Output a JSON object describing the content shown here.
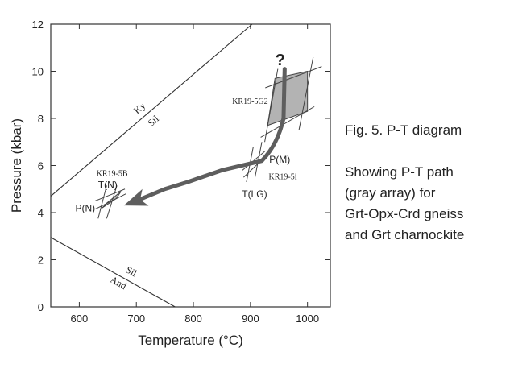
{
  "chart_data": {
    "type": "phase-diagram",
    "title": "",
    "xlabel": "Temperature (°C)",
    "ylabel": "Pressure (kbar)",
    "xlim": [
      550,
      1040
    ],
    "ylim": [
      0,
      12
    ],
    "x_ticks": [
      600,
      700,
      800,
      900,
      1000
    ],
    "y_ticks": [
      0,
      2,
      4,
      6,
      8,
      10,
      12
    ],
    "grid": false,
    "phase_boundaries": [
      {
        "name": "Ky-Sil",
        "upper_label": "Ky",
        "lower_label": "Sil",
        "points": [
          [
            550,
            4.7
          ],
          [
            903,
            12.0
          ]
        ]
      },
      {
        "name": "Sil-And",
        "upper_label": "Sil",
        "lower_label": "And",
        "points": [
          [
            550,
            2.95
          ],
          [
            768,
            0.0
          ]
        ]
      }
    ],
    "fields": [
      {
        "label": "KR19-5G2",
        "polygon": [
          [
            930,
            7.7
          ],
          [
            1000,
            8.3
          ],
          [
            1000,
            10.0
          ],
          [
            943,
            9.7
          ]
        ]
      },
      {
        "label": "KR19-5B",
        "polygon": [
          [
            640,
            4.2
          ],
          [
            665,
            4.6
          ],
          [
            673,
            4.9
          ],
          [
            648,
            4.4
          ]
        ]
      }
    ],
    "labels": [
      "?",
      "KR19-5G2",
      "P(M)",
      "KR19-5i",
      "T(LG)",
      "KR19-5B",
      "T(N)",
      "P(N)"
    ],
    "pt_path": {
      "points": [
        [
          960,
          10.1
        ],
        [
          958,
          8.0
        ],
        [
          948,
          6.9
        ],
        [
          920,
          6.2
        ],
        [
          850,
          5.8
        ],
        [
          790,
          5.3
        ],
        [
          750,
          5.0
        ],
        [
          700,
          4.5
        ]
      ]
    },
    "caption": {
      "line1": "Fig. 5. P-T diagram",
      "line2": "Showing P-T path",
      "line3": "(gray array) for",
      "line4": "Grt-Opx-Crd gneiss",
      "line5": "and Grt charnockite"
    }
  }
}
